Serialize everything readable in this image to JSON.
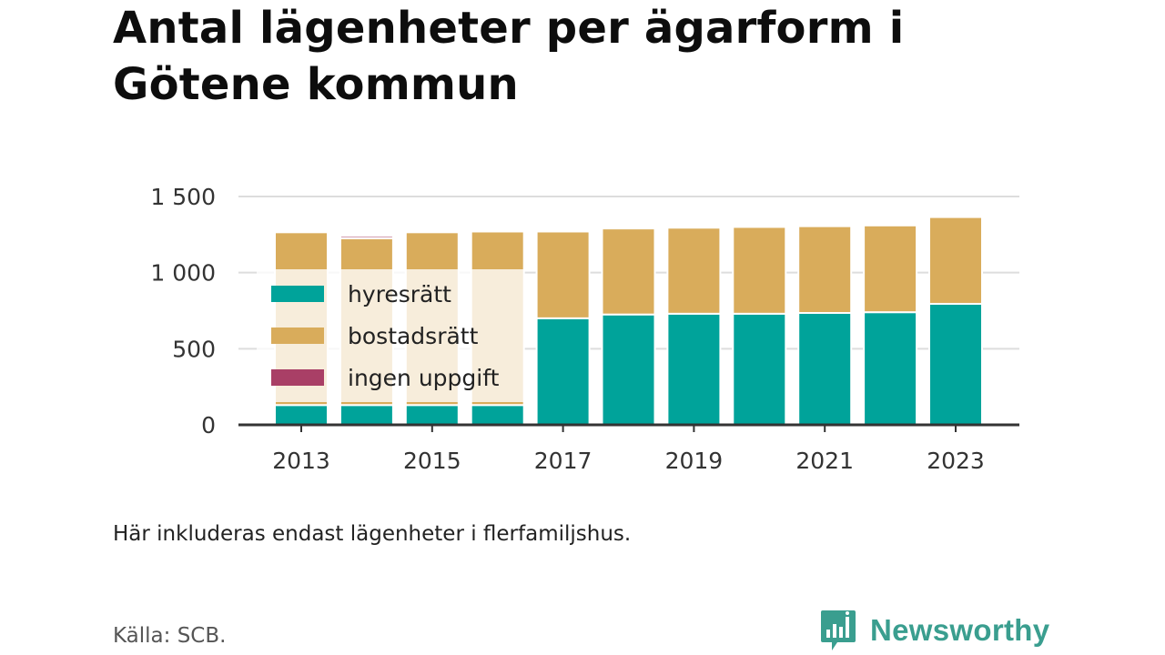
{
  "colors": {
    "hyresratt": "#00A39A",
    "bostadsratt": "#D9AC5B",
    "ingen_uppgift": "#A93F66",
    "grid": "#dddddd",
    "axis": "#333333",
    "brand": "#3A9E8F"
  },
  "footer": {
    "note": "Här inkluderas endast lägenheter i flerfamiljshus.",
    "source": "Källa: SCB.",
    "brand": "Newsworthy",
    "brand_icon": "bar-chart-speech-bubble-icon"
  },
  "chart_data": {
    "type": "bar",
    "stacked": true,
    "title": "Antal lägenheter per ägarform i Götene kommun",
    "xlabel": "",
    "ylabel": "",
    "categories": [
      "2013",
      "2014",
      "2015",
      "2016",
      "2017",
      "2018",
      "2019",
      "2020",
      "2021",
      "2022",
      "2023"
    ],
    "x_tick_labels": [
      "2013",
      "2015",
      "2017",
      "2019",
      "2021",
      "2023"
    ],
    "y_ticks": [
      0,
      500,
      1000,
      1500
    ],
    "y_tick_labels": [
      "0",
      "500",
      "1 000",
      "1 500"
    ],
    "ylim": [
      0,
      1500
    ],
    "grid": true,
    "legend_position": "left-inside",
    "series": [
      {
        "key": "hyresratt",
        "name": "hyresrätt",
        "values": [
          130,
          130,
          130,
          130,
          700,
          725,
          730,
          730,
          735,
          740,
          795
        ]
      },
      {
        "key": "bostadsratt",
        "name": "bostadsrätt",
        "values": [
          1135,
          1095,
          1135,
          1140,
          570,
          565,
          565,
          570,
          570,
          570,
          570
        ]
      },
      {
        "key": "ingen_uppgift",
        "name": "ingen uppgift",
        "values": [
          0,
          15,
          0,
          0,
          0,
          0,
          0,
          0,
          0,
          0,
          0
        ]
      }
    ]
  }
}
